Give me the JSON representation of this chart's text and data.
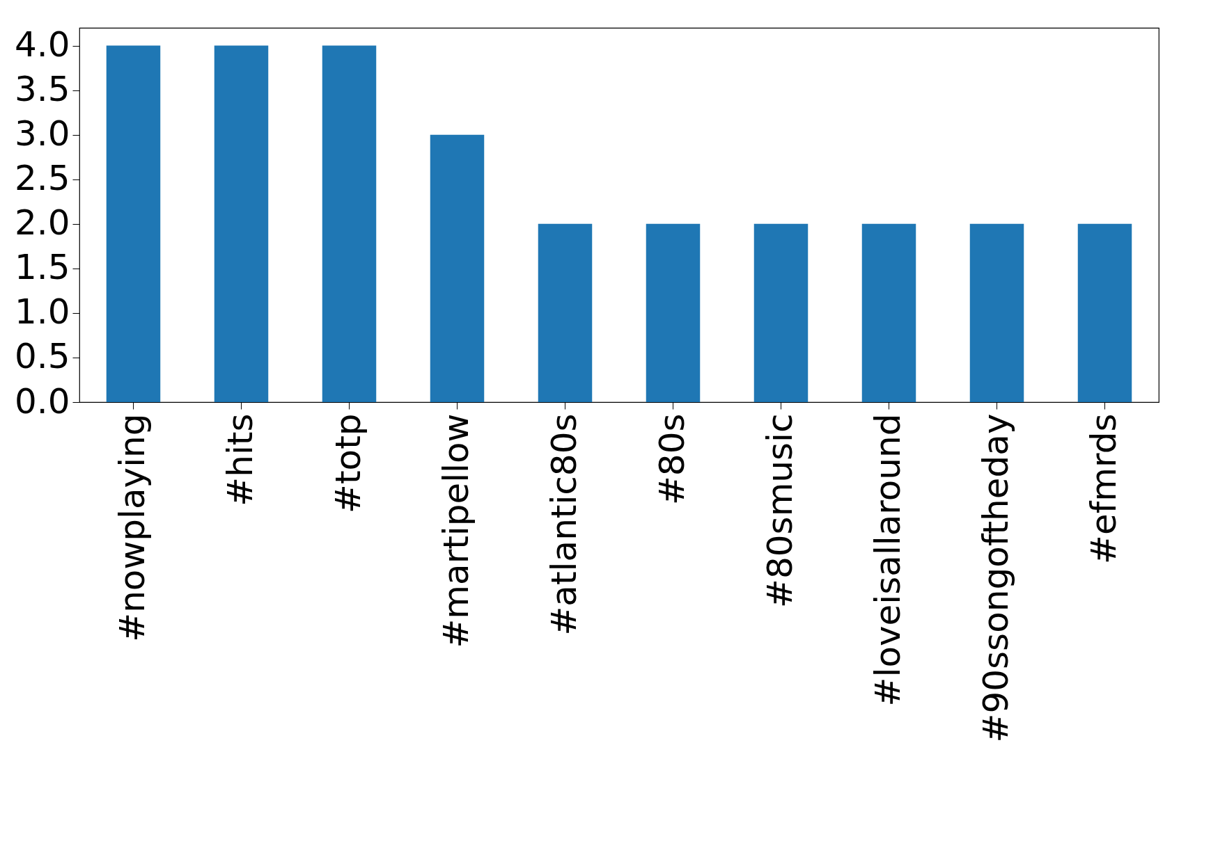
{
  "chart_data": {
    "type": "bar",
    "categories": [
      "#nowplaying",
      "#hits",
      "#totp",
      "#martipellow",
      "#atlantic80s",
      "#80s",
      "#80smusic",
      "#loveisallaround",
      "#90ssongoftheday",
      "#efmrds"
    ],
    "values": [
      4,
      4,
      4,
      3,
      2,
      2,
      2,
      2,
      2,
      2
    ],
    "color": "#1f77b4",
    "ylim": [
      0,
      4.2
    ],
    "yticks": [
      {
        "value": 0,
        "label": "0.0"
      },
      {
        "value": 0.5,
        "label": "0.5"
      },
      {
        "value": 1,
        "label": "1.0"
      },
      {
        "value": 1.5,
        "label": "1.5"
      },
      {
        "value": 2,
        "label": "2.0"
      },
      {
        "value": 2.5,
        "label": "2.5"
      },
      {
        "value": 3,
        "label": "3.0"
      },
      {
        "value": 3.5,
        "label": "3.5"
      },
      {
        "value": 4,
        "label": "4.0"
      }
    ],
    "grid": false
  }
}
